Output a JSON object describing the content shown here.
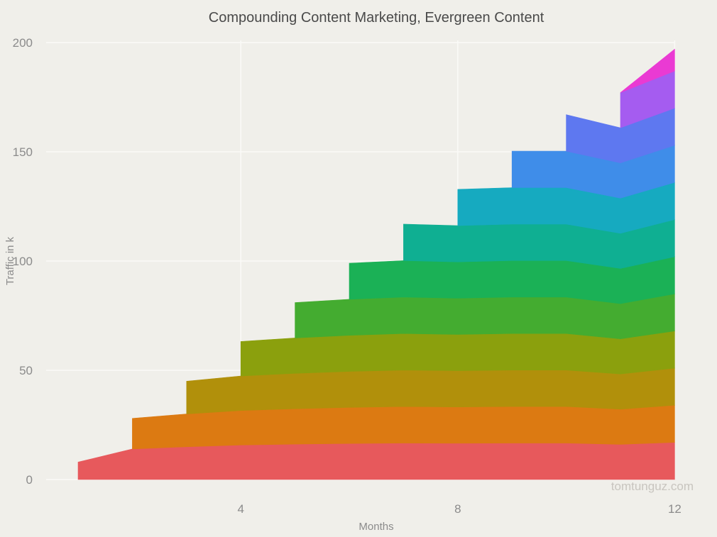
{
  "page": {
    "background_color": "#F0EFEA",
    "watermark": "tomtunguz.com"
  },
  "chart_data": {
    "type": "area",
    "variant": "stacked",
    "title": "Compounding Content Marketing, Evergreen Content",
    "xlabel": "Months",
    "ylabel": "Traffic in k",
    "legend": "none",
    "grid": true,
    "xlim": [
      1,
      12
    ],
    "ylim": [
      0,
      200
    ],
    "x_months": [
      1,
      2,
      3,
      4,
      5,
      6,
      7,
      8,
      9,
      10,
      11,
      12
    ],
    "x_tick_values": [
      4,
      8,
      12
    ],
    "x_tick_labels": [
      "4",
      "8",
      "12"
    ],
    "y_tick_values": [
      0,
      50,
      100,
      150,
      200
    ],
    "y_tick_labels": [
      "0",
      "50",
      "100",
      "150",
      "200"
    ],
    "monthly_total_traffic_k": [
      8,
      28,
      45,
      63,
      81,
      99,
      117,
      133,
      150,
      167,
      177,
      187
    ],
    "series": [
      {
        "id": "launched-month-1",
        "color": "#E7595C",
        "values": [
          8,
          14,
          15,
          15.8,
          16.2,
          16.5,
          16.7,
          16.6,
          16.7,
          16.7,
          16.1,
          17
        ]
      },
      {
        "id": "launched-month-2",
        "color": "#DC7A12",
        "values": [
          0,
          14,
          15,
          15.8,
          16.2,
          16.5,
          16.7,
          16.6,
          16.7,
          16.7,
          16.1,
          17
        ]
      },
      {
        "id": "launched-month-3",
        "color": "#B1900B",
        "values": [
          0,
          0,
          15,
          15.8,
          16.2,
          16.5,
          16.7,
          16.6,
          16.7,
          16.7,
          16.1,
          17
        ]
      },
      {
        "id": "launched-month-4",
        "color": "#8BA00D",
        "values": [
          0,
          0,
          0,
          15.8,
          16.2,
          16.5,
          16.7,
          16.6,
          16.7,
          16.7,
          16.1,
          17
        ]
      },
      {
        "id": "launched-month-5",
        "color": "#44AC30",
        "values": [
          0,
          0,
          0,
          0,
          16.2,
          16.5,
          16.7,
          16.6,
          16.7,
          16.7,
          16.1,
          17
        ]
      },
      {
        "id": "launched-month-6",
        "color": "#1BB156",
        "values": [
          0,
          0,
          0,
          0,
          0,
          16.5,
          16.7,
          16.6,
          16.7,
          16.7,
          16.1,
          17
        ]
      },
      {
        "id": "launched-month-7",
        "color": "#0FAF92",
        "values": [
          0,
          0,
          0,
          0,
          0,
          0,
          16.7,
          16.6,
          16.7,
          16.7,
          16.1,
          17
        ]
      },
      {
        "id": "launched-month-8",
        "color": "#16AAC0",
        "values": [
          0,
          0,
          0,
          0,
          0,
          0,
          0,
          16.6,
          16.7,
          16.7,
          16.1,
          17
        ]
      },
      {
        "id": "launched-month-9",
        "color": "#3F8DE9",
        "values": [
          0,
          0,
          0,
          0,
          0,
          0,
          0,
          0,
          16.7,
          16.7,
          16.1,
          17
        ]
      },
      {
        "id": "launched-month-10",
        "color": "#5E78F0",
        "values": [
          0,
          0,
          0,
          0,
          0,
          0,
          0,
          0,
          0,
          16.7,
          16.1,
          17
        ]
      },
      {
        "id": "launched-month-11",
        "color": "#A55CF0",
        "values": [
          0,
          0,
          0,
          0,
          0,
          0,
          0,
          0,
          0,
          0,
          16.1,
          17
        ]
      }
    ],
    "top_wedge": {
      "id": "launched-month-12",
      "color": "#EA3AD3",
      "comment_visible_range_months": [
        11,
        12
      ],
      "values_k": [
        0,
        0,
        0,
        0,
        0,
        0,
        0,
        0,
        0,
        0,
        0,
        10
      ]
    }
  }
}
